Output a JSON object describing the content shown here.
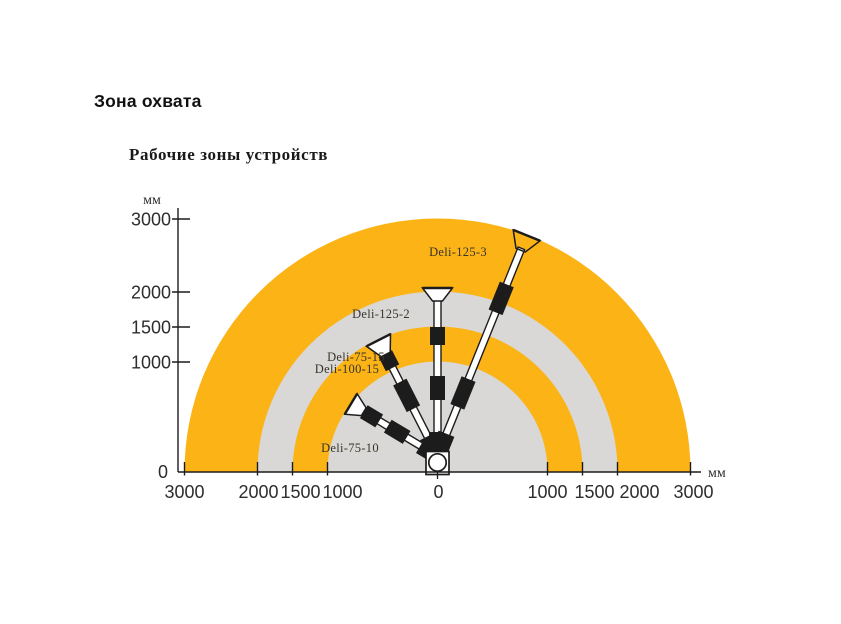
{
  "page": {
    "title": "Зона охвата"
  },
  "chart_data": {
    "type": "radial-zones",
    "title": "Рабочие зоны устройств",
    "unit": "мм",
    "axes": {
      "x_left_ticks": [
        3000,
        2000,
        1500,
        1000
      ],
      "x_center_tick_label": "0",
      "x_right_ticks": [
        1000,
        1500,
        2000,
        3000
      ],
      "y_ticks": [
        3000,
        2000,
        1500,
        1000
      ],
      "y_zero_label": "0",
      "x_unit_label": "мм",
      "y_unit_label": "мм",
      "x_range_mm": [
        -3000,
        3000
      ],
      "y_range_mm": [
        0,
        3000
      ]
    },
    "rings": [
      {
        "from_mm": 2000,
        "to_mm": 3000,
        "color": "#FBB316"
      },
      {
        "from_mm": 1500,
        "to_mm": 2000,
        "color": "#D9D8D6"
      },
      {
        "from_mm": 1000,
        "to_mm": 1500,
        "color": "#FBB316"
      },
      {
        "from_mm": 0,
        "to_mm": 1000,
        "color": "#D9D8D6"
      }
    ],
    "devices": [
      {
        "name": "Deli-75-10",
        "reach_mm": 1000
      },
      {
        "name": "Deli-75-15",
        "reach_mm": 1500
      },
      {
        "name": "Deli-100-15",
        "reach_mm": 1500
      },
      {
        "name": "Deli-125-2",
        "reach_mm": 2000
      },
      {
        "name": "Deli-125-3",
        "reach_mm": 3000
      }
    ],
    "colors": {
      "zone_orange": "#FBB316",
      "zone_gray": "#D9D8D6",
      "ink": "#1c1c1c"
    }
  }
}
